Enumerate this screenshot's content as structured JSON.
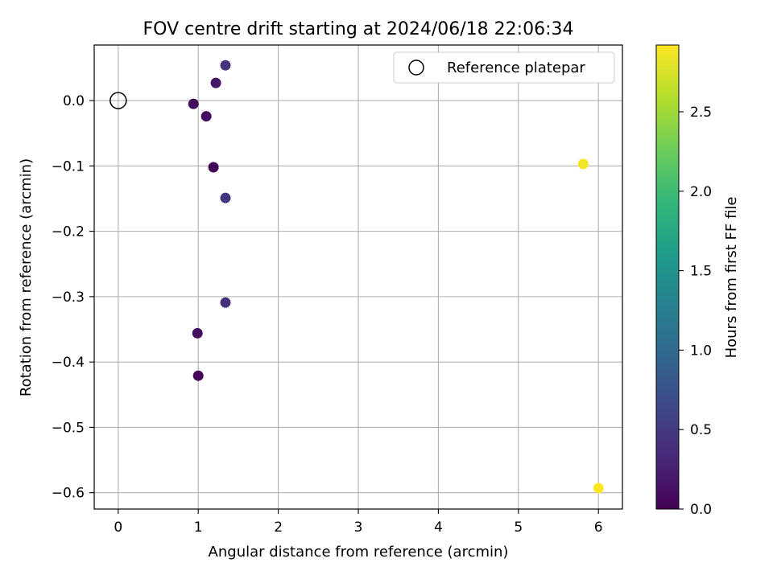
{
  "chart_data": {
    "type": "scatter",
    "title": "FOV centre drift starting at 2024/06/18 22:06:34",
    "xlabel": "Angular distance from reference (arcmin)",
    "ylabel": "Rotation from reference (arcmin)",
    "xlim": [
      -0.3,
      6.3
    ],
    "ylim": [
      -0.625,
      0.085
    ],
    "xticks": [
      0,
      1,
      2,
      3,
      4,
      5,
      6
    ],
    "xtick_labels": [
      "0",
      "1",
      "2",
      "3",
      "4",
      "5",
      "6"
    ],
    "yticks": [
      0.0,
      -0.1,
      -0.2,
      -0.3,
      -0.4,
      -0.5,
      -0.6
    ],
    "ytick_labels": [
      "0.0",
      "−0.1",
      "−0.2",
      "−0.3",
      "−0.4",
      "−0.5",
      "−0.6"
    ],
    "grid": true,
    "legend": {
      "position": "top-right",
      "entries": [
        "Reference platepar"
      ]
    },
    "reference_point": {
      "x": 0,
      "y": 0,
      "label": "Reference platepar"
    },
    "points": [
      {
        "x": 1.34,
        "y": 0.054,
        "hours": 0.42
      },
      {
        "x": 1.22,
        "y": 0.027,
        "hours": 0.18
      },
      {
        "x": 0.94,
        "y": -0.005,
        "hours": 0.08
      },
      {
        "x": 1.1,
        "y": -0.024,
        "hours": 0.1
      },
      {
        "x": 1.19,
        "y": -0.102,
        "hours": 0.02
      },
      {
        "x": 1.34,
        "y": -0.149,
        "hours": 0.45
      },
      {
        "x": 1.34,
        "y": -0.309,
        "hours": 0.4
      },
      {
        "x": 0.99,
        "y": -0.356,
        "hours": 0.12
      },
      {
        "x": 1.0,
        "y": -0.421,
        "hours": 0.06
      },
      {
        "x": 5.81,
        "y": -0.097,
        "hours": 2.88
      },
      {
        "x": 6.0,
        "y": -0.593,
        "hours": 2.92
      }
    ],
    "colorbar": {
      "label": "Hours from first FF file",
      "range": [
        0,
        2.92
      ],
      "ticks": [
        0.0,
        0.5,
        1.0,
        1.5,
        2.0,
        2.5
      ],
      "tick_labels": [
        "0.0",
        "0.5",
        "1.0",
        "1.5",
        "2.0",
        "2.5"
      ],
      "colormap": "viridis",
      "stops": [
        "#440154",
        "#482878",
        "#3e4989",
        "#31688e",
        "#26828e",
        "#1f9e89",
        "#35b779",
        "#6ece58",
        "#b5de2b",
        "#fde725"
      ]
    }
  }
}
